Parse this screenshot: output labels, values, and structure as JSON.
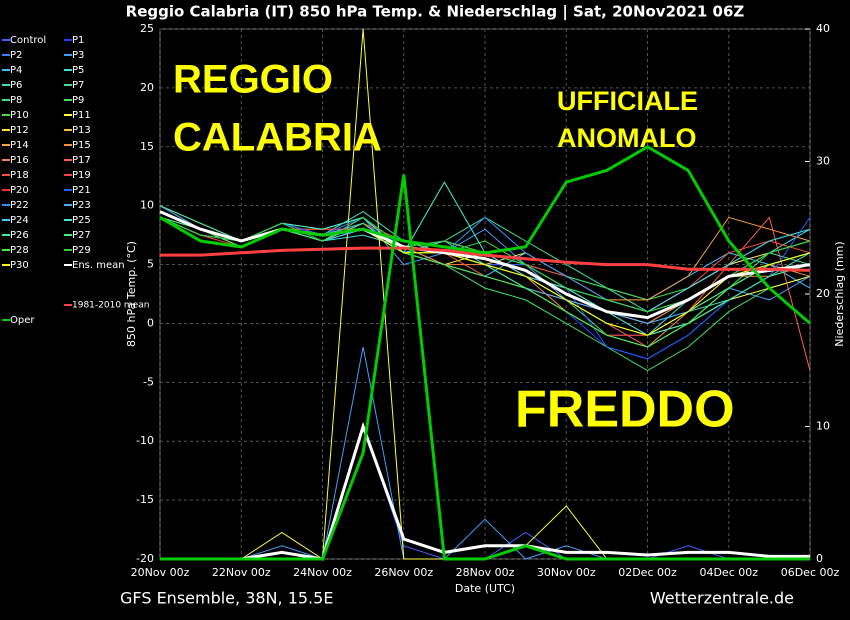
{
  "chart_data": {
    "type": "line",
    "title": "Reggio Calabria  (IT)  850 hPa Temp. & Niederschlag | Sat, 20Nov2021 06Z",
    "subtitle_left": "GFS Ensemble, 38N, 15.5E",
    "subtitle_right": "Wetterzentrale.de",
    "xlabel": "Date (UTC)",
    "ylabel": "850 hPa Temp. (°C)",
    "y2label": "Niederschlag (mm)",
    "annotations": [
      {
        "lines": [
          "REGGIO",
          "CALABRIA"
        ]
      },
      {
        "lines": [
          "UFFICIALE",
          "ANOMALO"
        ]
      },
      {
        "lines": [
          "FREDDO"
        ]
      }
    ],
    "categories": [
      "20Nov 00z",
      null,
      "22Nov 00z",
      null,
      "24Nov 00z",
      null,
      "26Nov 00z",
      null,
      "28Nov 00z",
      null,
      "30Nov 00z",
      null,
      "02Dec 00z",
      null,
      "04Dec 00z",
      null,
      "06Dec 00z"
    ],
    "ylim": [
      -20,
      25
    ],
    "yticks": [
      -20,
      -15,
      -10,
      -5,
      0,
      5,
      10,
      15,
      20,
      25
    ],
    "y2lim": [
      0,
      40
    ],
    "y2ticks": [
      0,
      10,
      20,
      30,
      40
    ],
    "grid": true,
    "series": [
      {
        "name": "Control",
        "color": "#4060ff",
        "values": [
          9.5,
          8,
          7,
          8.5,
          7.5,
          8,
          6,
          6,
          5,
          4,
          2,
          1,
          -1,
          1,
          3,
          5,
          6
        ],
        "precip": [
          0,
          0,
          0,
          0,
          0,
          10,
          1,
          0,
          0,
          2,
          0,
          0,
          0,
          1,
          0,
          0,
          0
        ]
      },
      {
        "name": "P1",
        "color": "#2040ff",
        "values": [
          9,
          8,
          6.5,
          8,
          7.5,
          8.5,
          6.5,
          5,
          4,
          3,
          1,
          -2,
          -3,
          -1,
          2,
          4,
          5
        ]
      },
      {
        "name": "P2",
        "color": "#4080ff",
        "values": [
          10,
          8.5,
          7,
          8,
          7,
          8,
          6,
          7,
          6,
          5,
          3,
          2,
          1,
          3,
          5,
          6,
          7
        ]
      },
      {
        "name": "P3",
        "color": "#40a0ff",
        "values": [
          9,
          7.5,
          7,
          8.5,
          7.5,
          9,
          5,
          6,
          8,
          5,
          2,
          0,
          -2,
          0,
          3,
          2,
          4
        ],
        "precip": [
          0,
          0,
          0,
          1,
          0,
          16,
          0,
          0,
          3,
          0,
          1,
          0,
          0,
          0,
          0,
          0,
          0
        ]
      },
      {
        "name": "P4",
        "color": "#40c0ff",
        "values": [
          9.5,
          8,
          7,
          8,
          8,
          9,
          6,
          5,
          4,
          6,
          4,
          3,
          2,
          4,
          6,
          5,
          3
        ]
      },
      {
        "name": "P5",
        "color": "#40e0e0",
        "values": [
          9,
          8,
          6.5,
          8,
          7,
          7.5,
          6.5,
          7,
          5,
          3,
          1,
          -1,
          -1,
          2,
          4,
          6,
          8
        ]
      },
      {
        "name": "P6",
        "color": "#40e0c0",
        "values": [
          10,
          8,
          7,
          8,
          7.5,
          9.5,
          7,
          6,
          5,
          4,
          3,
          1,
          0,
          1,
          2,
          4,
          6
        ]
      },
      {
        "name": "P7",
        "color": "#40e0a0",
        "values": [
          9.5,
          8,
          7,
          8.5,
          7.5,
          8,
          6,
          7,
          9,
          7,
          5,
          3,
          1,
          2,
          4,
          6,
          5
        ]
      },
      {
        "name": "P8",
        "color": "#40e080",
        "values": [
          9,
          7.5,
          7,
          8,
          7,
          8,
          6,
          6,
          5,
          4,
          2,
          -1,
          -2,
          0,
          2,
          4,
          5
        ]
      },
      {
        "name": "P9",
        "color": "#40e060",
        "values": [
          9.5,
          8,
          7,
          8,
          8,
          9,
          6.5,
          5,
          3,
          2,
          0,
          -2,
          -4,
          -2,
          1,
          3,
          4
        ]
      },
      {
        "name": "P10",
        "color": "#40e040",
        "values": [
          10,
          8.5,
          7,
          8.5,
          7.5,
          8,
          6,
          6,
          7,
          5,
          4,
          3,
          2,
          3,
          5,
          7,
          8
        ]
      },
      {
        "name": "P11",
        "color": "#ffff40",
        "values": [
          9,
          8,
          6.5,
          8,
          7,
          8.5,
          6,
          5,
          6,
          4,
          2,
          0,
          -1,
          0,
          2,
          3,
          4
        ],
        "precip": [
          0,
          0,
          0,
          2,
          0,
          40,
          0,
          0,
          0,
          1,
          4,
          0,
          0,
          0,
          0,
          0,
          0
        ]
      },
      {
        "name": "P12",
        "color": "#ffe040",
        "values": [
          9.5,
          8,
          7,
          8,
          7.5,
          8,
          7,
          6,
          5,
          6,
          4,
          2,
          1,
          3,
          5,
          6,
          7
        ]
      },
      {
        "name": "P13",
        "color": "#ffc040",
        "values": [
          9,
          7.5,
          7,
          8,
          7,
          9,
          6,
          5,
          4,
          3,
          2,
          1,
          0,
          2,
          4,
          5,
          6
        ]
      },
      {
        "name": "P14",
        "color": "#ffa040",
        "values": [
          10,
          8,
          7,
          8.5,
          8,
          8,
          6,
          7,
          6,
          4,
          3,
          2,
          2,
          4,
          9,
          8,
          7
        ]
      },
      {
        "name": "P15",
        "color": "#ff9040",
        "values": [
          9.5,
          8,
          6.5,
          8,
          7.5,
          8.5,
          6,
          6,
          5,
          4,
          1,
          -1,
          -2,
          1,
          3,
          5,
          4
        ]
      },
      {
        "name": "P16",
        "color": "#ff8040",
        "values": [
          9,
          8,
          7,
          8,
          7,
          8,
          6.5,
          5,
          5,
          5,
          3,
          1,
          0,
          2,
          4,
          4,
          5
        ]
      },
      {
        "name": "P17",
        "color": "#ff6040",
        "values": [
          9.5,
          8,
          7,
          8.5,
          7.5,
          9,
          6,
          6,
          4,
          3,
          2,
          0,
          -1,
          1,
          5,
          9,
          -4
        ]
      },
      {
        "name": "P18",
        "color": "#ff5040",
        "values": [
          10,
          8.5,
          7,
          8,
          7.5,
          8,
          6,
          7,
          6,
          5,
          4,
          2,
          1,
          3,
          6,
          7,
          6
        ]
      },
      {
        "name": "P19",
        "color": "#ff4040",
        "values": [
          9,
          7.5,
          6.5,
          8,
          7,
          8.5,
          7,
          6,
          5,
          4,
          2,
          0,
          -2,
          0,
          3,
          5,
          6
        ]
      },
      {
        "name": "P20",
        "color": "#ff3030",
        "values": [
          9.5,
          8,
          7,
          8,
          8,
          8,
          6,
          5,
          4,
          3,
          1,
          -1,
          -1,
          1,
          4,
          6,
          7
        ]
      },
      {
        "name": "P21",
        "color": "#2060ff",
        "values": [
          9,
          8,
          7,
          8.5,
          7.5,
          9,
          6,
          6,
          5,
          5,
          3,
          -2,
          -3,
          -1,
          2,
          4,
          9
        ]
      },
      {
        "name": "P22",
        "color": "#3090ff",
        "values": [
          10,
          8,
          7,
          8,
          7,
          8,
          6.5,
          6,
          9,
          6,
          4,
          2,
          1,
          2,
          4,
          6,
          7
        ]
      },
      {
        "name": "P23",
        "color": "#40b0ff",
        "values": [
          9.5,
          8,
          6.5,
          8,
          7.5,
          8.5,
          6,
          5,
          4,
          3,
          2,
          1,
          0,
          1,
          3,
          5,
          6
        ]
      },
      {
        "name": "P24",
        "color": "#40d0ff",
        "values": [
          9,
          7.5,
          7,
          8,
          7,
          8,
          6,
          7,
          6,
          4,
          3,
          2,
          1,
          3,
          5,
          7,
          8
        ]
      },
      {
        "name": "P25",
        "color": "#40f0d0",
        "values": [
          9.5,
          8,
          7,
          8.5,
          8,
          9,
          6,
          12,
          6,
          5,
          3,
          1,
          -1,
          0,
          3,
          5,
          6
        ]
      },
      {
        "name": "P26",
        "color": "#40f0a0",
        "values": [
          10,
          8.5,
          7,
          8,
          7.5,
          8,
          7,
          6,
          5,
          3,
          1,
          -1,
          -2,
          0,
          2,
          4,
          5
        ]
      },
      {
        "name": "P27",
        "color": "#40f070",
        "values": [
          9,
          8,
          7,
          8,
          7,
          8.5,
          6,
          6,
          5,
          4,
          2,
          0,
          -1,
          1,
          3,
          5,
          6
        ]
      },
      {
        "name": "P28",
        "color": "#40f040",
        "values": [
          9.5,
          8,
          6.5,
          8,
          7.5,
          8,
          6,
          5,
          4,
          3,
          1,
          -1,
          -2,
          0,
          3,
          6,
          7
        ]
      },
      {
        "name": "P29",
        "color": "#30d030",
        "values": [
          9,
          7.5,
          7,
          8.5,
          7,
          9,
          6.5,
          7,
          6,
          5,
          3,
          2,
          1,
          2,
          4,
          6,
          7
        ]
      },
      {
        "name": "P30",
        "color": "#ffff00",
        "values": [
          9.5,
          8,
          7,
          8,
          7.5,
          8,
          6,
          6,
          5,
          4,
          2,
          0,
          -1,
          1,
          4,
          5,
          6
        ]
      },
      {
        "name": "Ens. mean",
        "color": "#ffffff",
        "values": [
          9.5,
          8,
          7,
          8,
          7.5,
          8,
          6.5,
          6,
          5.5,
          4.5,
          2.5,
          1,
          0.5,
          2,
          4,
          4.5,
          5
        ],
        "precip": [
          0,
          0,
          0,
          0.5,
          0,
          10,
          1.5,
          0.5,
          1,
          1,
          0.5,
          0.5,
          0.3,
          0.5,
          0.5,
          0.2,
          0.2
        ]
      },
      {
        "name": "1981-2010 mean",
        "color": "#ff4040",
        "values": [
          5.8,
          5.8,
          6,
          6.2,
          6.3,
          6.4,
          6.4,
          6.2,
          5.8,
          5.5,
          5.2,
          5,
          5,
          4.6,
          4.6,
          4.6,
          4.5
        ]
      },
      {
        "name": "Oper",
        "color": "#00cc00",
        "values": [
          9,
          7,
          6.5,
          8,
          7.5,
          8,
          7,
          6.5,
          6,
          6.5,
          12,
          13,
          15,
          13,
          7,
          3,
          0
        ],
        "precip": [
          0,
          0,
          0,
          0,
          0,
          8,
          29,
          0,
          0,
          1,
          0,
          0,
          0,
          0,
          0,
          0,
          0
        ]
      }
    ]
  }
}
